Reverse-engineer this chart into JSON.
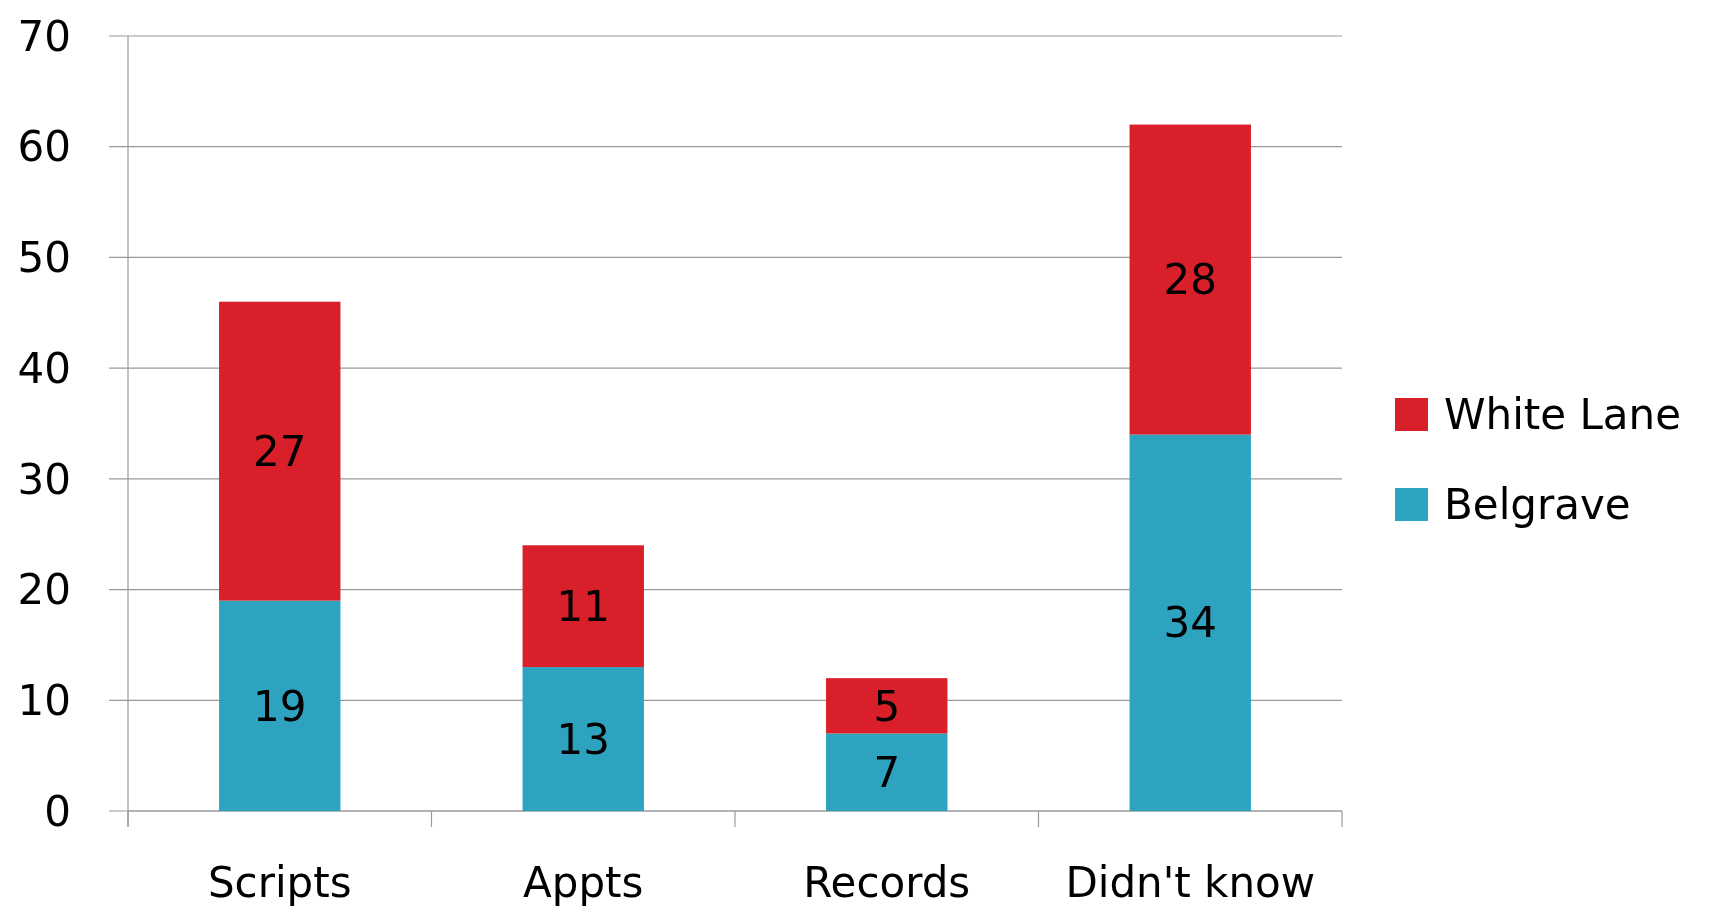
{
  "chart_data": {
    "type": "bar",
    "stacked": true,
    "categories": [
      "Scripts",
      "Appts",
      "Records",
      "Didn't know"
    ],
    "series": [
      {
        "name": "Belgrave",
        "color": "#2ea3c0",
        "values": [
          19,
          13,
          7,
          34
        ]
      },
      {
        "name": "White Lane",
        "color": "#d9202a",
        "values": [
          27,
          11,
          5,
          28
        ]
      }
    ],
    "ylim": [
      0,
      70
    ],
    "yticks": [
      0,
      10,
      20,
      30,
      40,
      50,
      60,
      70
    ],
    "grid": "y",
    "legend": "right",
    "data_labels": true
  }
}
